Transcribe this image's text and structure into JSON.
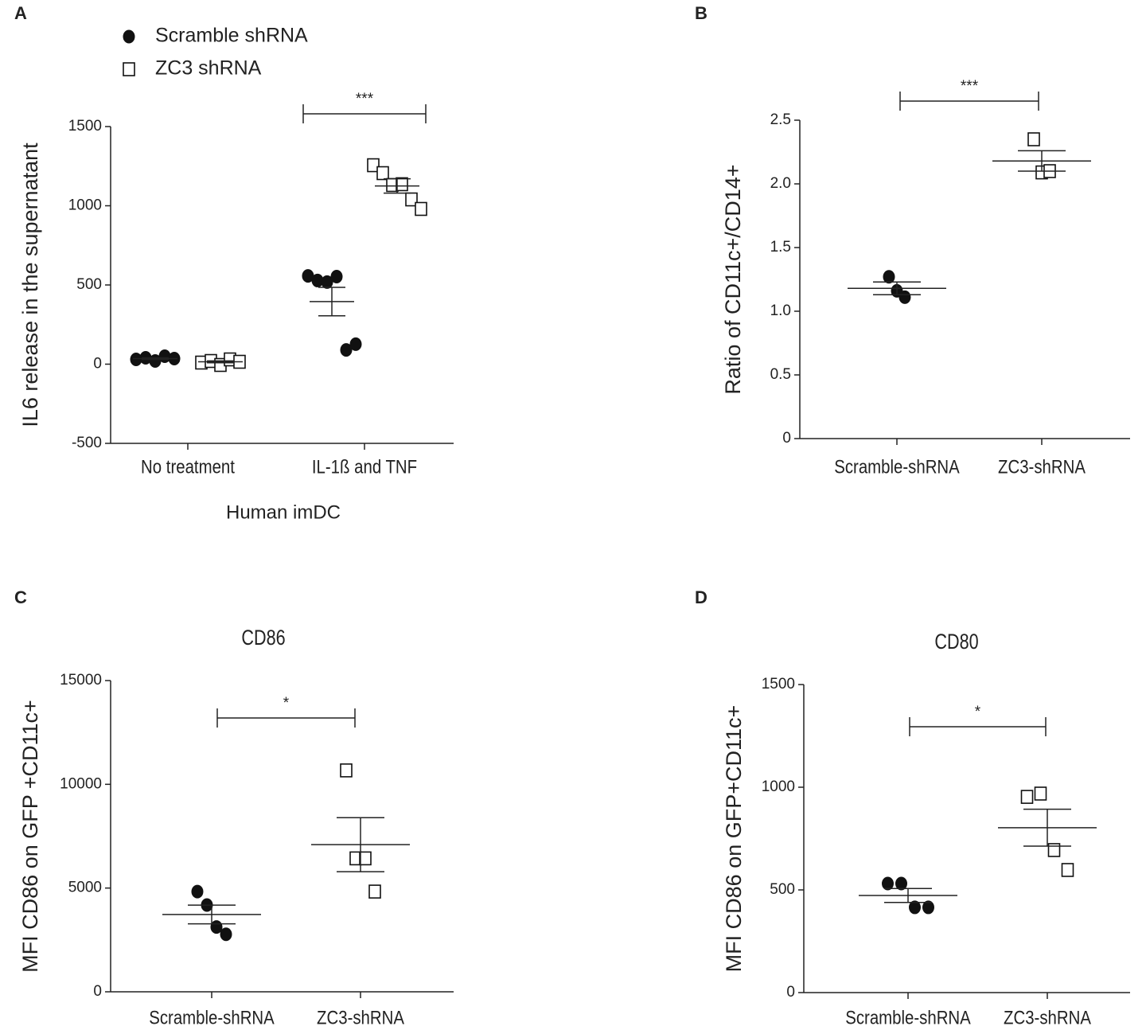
{
  "chart_data": [
    {
      "type": "scatter",
      "label": "A",
      "ylabel": "IL6 release in the supernatant",
      "xlabel": "Human imDC",
      "categories": [
        "No treatment",
        "IL-1ß and TNF"
      ],
      "ylim": [
        -500,
        1500
      ],
      "yticks": [
        -500,
        0,
        500,
        1000,
        1500
      ],
      "series": [
        {
          "name": "Scramble shRNA",
          "color": "#111111",
          "marker": "filled-circle",
          "points": [
            [
              30,
              40,
              20,
              50,
              35
            ],
            [
              557,
              528,
              518,
              553,
              90,
              126
            ]
          ],
          "mean": [
            35,
            395
          ],
          "sem": [
            5,
            90
          ]
        },
        {
          "name": "ZC3 shRNA",
          "color": "#111111",
          "marker": "open-square",
          "points": [
            [
              10,
              20,
              -5,
              30,
              15
            ],
            [
              1256,
              1206,
              1131,
              1136,
              1040,
              980
            ]
          ],
          "mean": [
            15,
            1125
          ],
          "sem": [
            6,
            45
          ]
        }
      ],
      "significance": {
        "label": "***",
        "category": 1
      }
    },
    {
      "type": "scatter",
      "label": "B",
      "ylabel": "Ratio of CD11c+/CD14+",
      "categories": [
        "Scramble-shRNA",
        "ZC3-shRNA"
      ],
      "ylim": [
        0,
        2.5
      ],
      "yticks": [
        0,
        0.5,
        {
          "value": 1,
          "label": "1.0"
        },
        1.5,
        {
          "value": 2,
          "label": "2.0"
        },
        2.5
      ],
      "series": [
        {
          "color": "#111111",
          "marker": "filled-circle",
          "points": [
            [
              1.27,
              1.16,
              1.11
            ],
            null
          ],
          "mean": [
            1.18,
            null
          ],
          "sem": [
            0.05,
            null
          ]
        },
        {
          "color": "#111111",
          "marker": "open-square",
          "points": [
            null,
            [
              2.35,
              2.09,
              2.1
            ]
          ],
          "mean": [
            null,
            2.18
          ],
          "sem": [
            null,
            0.08
          ]
        }
      ],
      "significance": {
        "label": "***"
      }
    },
    {
      "type": "scatter",
      "label": "C",
      "title": "CD86",
      "ylabel": "MFI CD86 on GFP +CD11c+",
      "categories": [
        "Scramble-shRNA",
        "ZC3-shRNA"
      ],
      "ylim": [
        0,
        15000
      ],
      "yticks": [
        0,
        5000,
        10000,
        15000
      ],
      "series": [
        {
          "color": "#111111",
          "marker": "filled-circle",
          "points": [
            [
              4830,
              4180,
              3120,
              2770
            ],
            null
          ],
          "mean": [
            3725,
            null
          ],
          "sem": [
            450,
            null
          ]
        },
        {
          "color": "#111111",
          "marker": "open-square",
          "points": [
            null,
            [
              10670,
              6430,
              6430,
              4830
            ]
          ],
          "mean": [
            null,
            7090
          ],
          "sem": [
            null,
            1300
          ]
        }
      ],
      "significance": {
        "label": "*"
      }
    },
    {
      "type": "scatter",
      "label": "D",
      "title": "CD80",
      "ylabel": "MFI CD86 on GFP+CD11c+",
      "categories": [
        "Scramble-shRNA",
        "ZC3-shRNA"
      ],
      "ylim": [
        0,
        1500
      ],
      "yticks": [
        0,
        500,
        1000,
        1500
      ],
      "series": [
        {
          "color": "#111111",
          "marker": "filled-circle",
          "points": [
            [
              531,
              531,
              415,
              415
            ],
            null
          ],
          "mean": [
            473,
            null
          ],
          "sem": [
            34,
            null
          ]
        },
        {
          "color": "#111111",
          "marker": "open-square",
          "points": [
            null,
            [
              953,
              969,
              694,
              597
            ]
          ],
          "mean": [
            null,
            803
          ],
          "sem": [
            null,
            90
          ]
        }
      ],
      "significance": {
        "label": "*"
      }
    }
  ]
}
